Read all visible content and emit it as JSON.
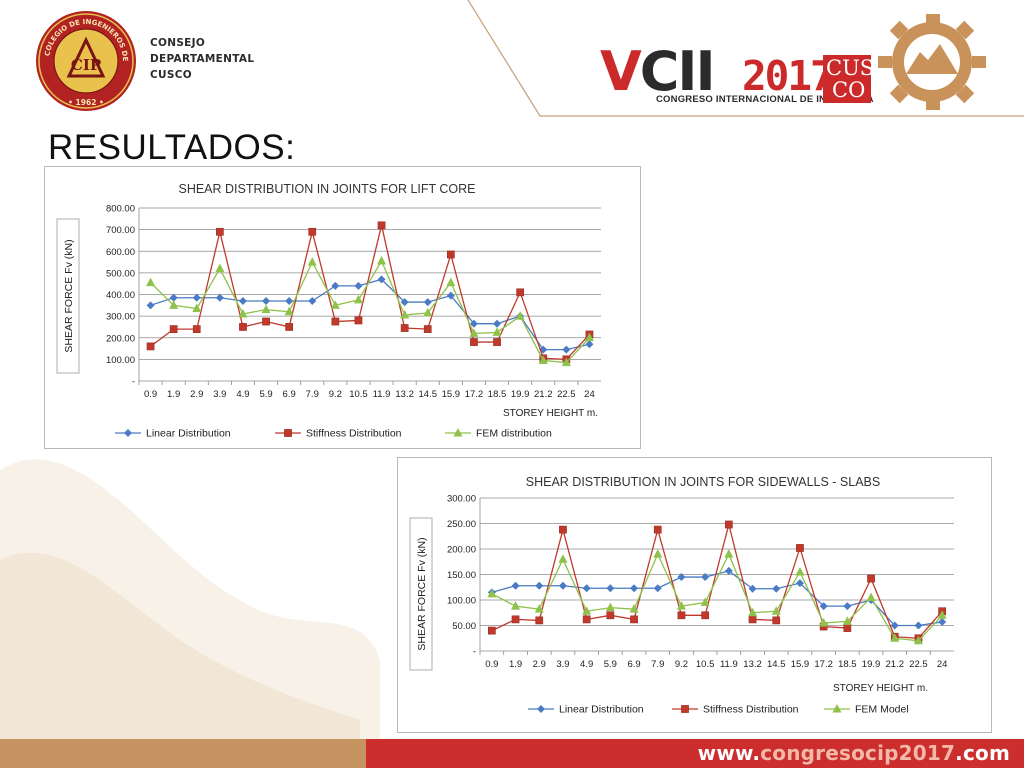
{
  "header": {
    "org_lines": [
      "CONSEJO",
      "DEPARTAMENTAL",
      "CUSCO"
    ],
    "logo_ring_text_top": "COLEGIO DE INGENIEROS DEL PERÚ",
    "logo_year": "• 1962 •",
    "logo_mark": "CIP",
    "event_v": "V",
    "event_cii": "CII",
    "event_year": "2017",
    "event_subtitle": "CONGRESO INTERNACIONAL DE INGENIERÍA",
    "cusco_top": "CUS",
    "cusco_bottom": "CO"
  },
  "page_title": "RESULTADOS:",
  "footer": {
    "url_prefix": "www.",
    "url_highlight": "congresocip2017",
    "url_suffix": ".com"
  },
  "colors": {
    "linear": "#4a7bc4",
    "stiffness": "#c0392b",
    "fem": "#8fc24a",
    "accent_red": "#cc2e2e",
    "accent_tan": "#c4935f"
  },
  "chart_data": [
    {
      "type": "line",
      "title": "SHEAR DISTRIBUTION IN JOINTS FOR LIFT CORE",
      "xlabel": "STOREY HEIGHT m.",
      "ylabel": "SHEAR FORCE Fv (kN)",
      "ylim": [
        0,
        800
      ],
      "yticks": [
        "-",
        "100.00",
        "200.00",
        "300.00",
        "400.00",
        "500.00",
        "600.00",
        "700.00",
        "800.00"
      ],
      "grid": true,
      "legend_position": "bottom",
      "categories": [
        "0.9",
        "1.9",
        "2.9",
        "3.9",
        "4.9",
        "5.9",
        "6.9",
        "7.9",
        "9.2",
        "10.5",
        "11.9",
        "13.2",
        "14.5",
        "15.9",
        "17.2",
        "18.5",
        "19.9",
        "21.2",
        "22.5",
        "24"
      ],
      "series": [
        {
          "name": "Linear Distribution",
          "marker": "diamond",
          "values": [
            350,
            385,
            385,
            385,
            370,
            370,
            370,
            370,
            440,
            440,
            470,
            365,
            365,
            395,
            265,
            265,
            300,
            145,
            145,
            170
          ]
        },
        {
          "name": "Stiffness Distribution",
          "marker": "square",
          "values": [
            160,
            240,
            240,
            690,
            250,
            275,
            250,
            690,
            275,
            280,
            720,
            245,
            240,
            585,
            180,
            180,
            410,
            105,
            100,
            215
          ]
        },
        {
          "name": "FEM distribution",
          "marker": "triangle",
          "values": [
            455,
            350,
            335,
            520,
            310,
            330,
            320,
            550,
            350,
            375,
            555,
            305,
            315,
            455,
            220,
            225,
            300,
            95,
            85,
            200
          ]
        }
      ]
    },
    {
      "type": "line",
      "title": "SHEAR DISTRIBUTION IN JOINTS FOR SIDEWALLS - SLABS",
      "xlabel": "STOREY  HEIGHT  m.",
      "ylabel": "SHEAR FORCE Fv (kN)",
      "ylim": [
        0,
        300
      ],
      "yticks": [
        "-",
        "50.00",
        "100.00",
        "150.00",
        "200.00",
        "250.00",
        "300.00"
      ],
      "grid": true,
      "legend_position": "bottom",
      "categories": [
        "0.9",
        "1.9",
        "2.9",
        "3.9",
        "4.9",
        "5.9",
        "6.9",
        "7.9",
        "9.2",
        "10.5",
        "11.9",
        "13.2",
        "14.5",
        "15.9",
        "17.2",
        "18.5",
        "19.9",
        "21.2",
        "22.5",
        "24"
      ],
      "series": [
        {
          "name": "Linear Distribution",
          "marker": "diamond",
          "values": [
            115,
            128,
            128,
            128,
            123,
            123,
            123,
            123,
            145,
            145,
            157,
            122,
            122,
            133,
            88,
            88,
            100,
            50,
            50,
            57
          ]
        },
        {
          "name": "Stiffness Distribution",
          "marker": "square",
          "values": [
            40,
            62,
            60,
            238,
            62,
            70,
            62,
            238,
            70,
            70,
            248,
            62,
            60,
            202,
            48,
            45,
            142,
            28,
            25,
            78
          ]
        },
        {
          "name": "FEM Model",
          "marker": "triangle",
          "values": [
            112,
            88,
            82,
            180,
            78,
            85,
            82,
            190,
            88,
            95,
            190,
            75,
            78,
            155,
            55,
            58,
            105,
            25,
            20,
            70
          ]
        }
      ]
    }
  ]
}
